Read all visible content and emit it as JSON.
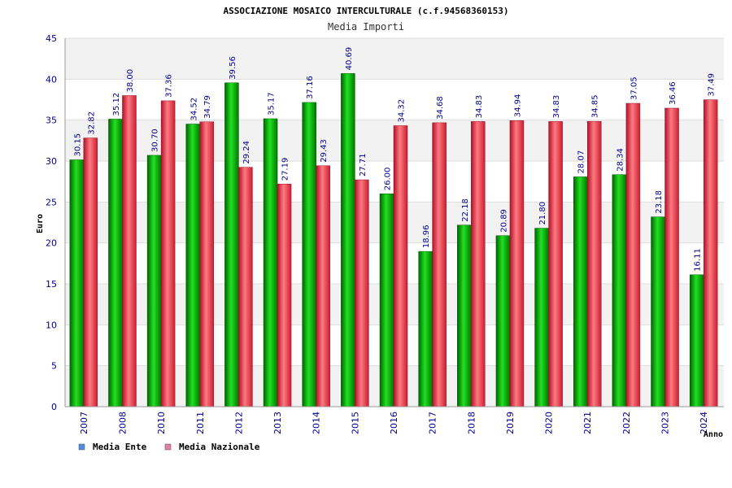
{
  "chart_data": {
    "type": "bar",
    "title": "ASSOCIAZIONE MOSAICO INTERCULTURALE (c.f.94568360153)",
    "subtitle": "Media Importi",
    "xlabel": "Anno",
    "ylabel": "Euro",
    "ylim": [
      0,
      45
    ],
    "yticks": [
      0,
      5,
      10,
      15,
      20,
      25,
      30,
      35,
      40,
      45
    ],
    "categories": [
      "2007",
      "2008",
      "2010",
      "2011",
      "2012",
      "2013",
      "2014",
      "2015",
      "2016",
      "2017",
      "2018",
      "2019",
      "2020",
      "2021",
      "2022",
      "2023",
      "2024"
    ],
    "series": [
      {
        "name": "Media Ente",
        "color": "#00b000",
        "values": [
          30.15,
          35.12,
          30.7,
          34.52,
          39.56,
          35.17,
          37.16,
          40.69,
          26.0,
          18.96,
          22.18,
          20.89,
          21.8,
          28.07,
          28.34,
          23.18,
          16.11
        ],
        "labels": [
          "30.15",
          "35.12",
          "30.70",
          "34.52",
          "39.56",
          "35.17",
          "37.16",
          "40.69",
          "26.00",
          "18.96",
          "22.18",
          "20.89",
          "21.80",
          "28.07",
          "28.34",
          "23.18",
          "16.11"
        ]
      },
      {
        "name": "Media Nazionale",
        "color": "#e0303c",
        "values": [
          32.82,
          38.0,
          37.36,
          34.79,
          29.24,
          27.19,
          29.43,
          27.71,
          34.32,
          34.68,
          34.83,
          34.94,
          34.83,
          34.85,
          37.05,
          36.46,
          37.49
        ],
        "labels": [
          "32.82",
          "38.00",
          "37.36",
          "34.79",
          "29.24",
          "27.19",
          "29.43",
          "27.71",
          "34.32",
          "34.68",
          "34.83",
          "34.94",
          "34.83",
          "34.85",
          "37.05",
          "36.46",
          "37.49"
        ]
      }
    ],
    "legend": {
      "position": "bottom-left",
      "items": [
        {
          "label": "Media Ente",
          "color": "#4f8fe0"
        },
        {
          "label": "Media Nazionale",
          "color": "#e07fa8"
        }
      ]
    },
    "grid": true,
    "band_colors": [
      "#f2f2f2",
      "#ffffff"
    ]
  }
}
